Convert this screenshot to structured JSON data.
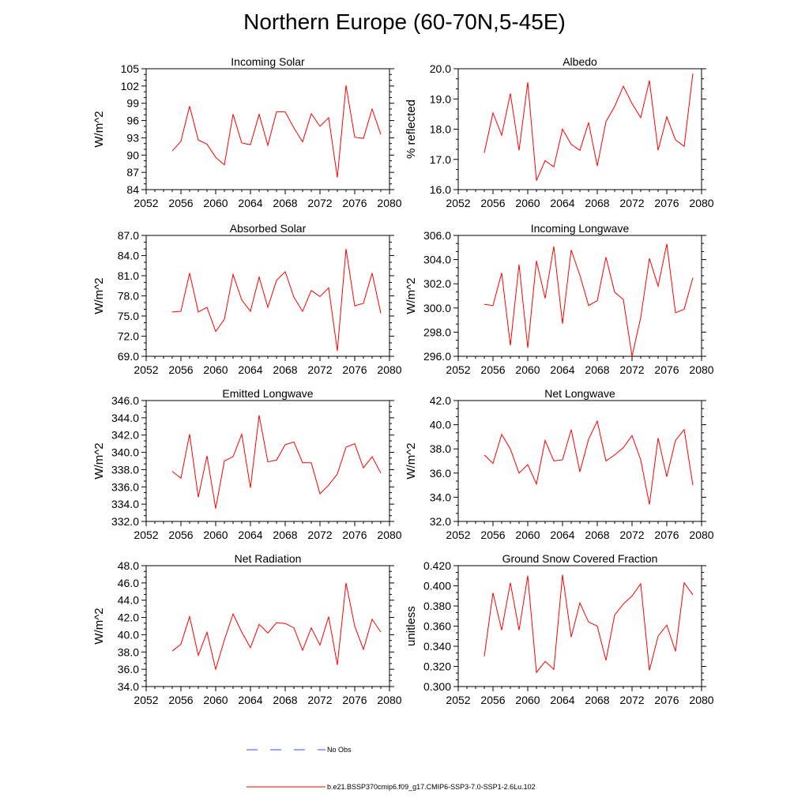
{
  "title": "Northern Europe (60-70N,5-45E)",
  "colors": {
    "model_line": "#ff0000",
    "obs_line": "#3b4fd8",
    "axis": "#000000"
  },
  "legend": {
    "obs_label": "No Obs",
    "model_label": "b.e21.BSSP370cmip6.f09_g17.CMIP6-SSP3-7.0-SSP1-2.6Lu.102"
  },
  "chart_data": [
    {
      "type": "line",
      "title": "Incoming Solar",
      "ylabel": "W/m^2",
      "xlim": [
        2052,
        2080
      ],
      "ylim": [
        84,
        105
      ],
      "xticks": [
        "2052",
        "2056",
        "2060",
        "2064",
        "2068",
        "2072",
        "2076",
        "2080"
      ],
      "yticks": [
        "84",
        "87",
        "90",
        "93",
        "96",
        "99",
        "102",
        "105"
      ],
      "x": [
        2055,
        2056,
        2057,
        2058,
        2059,
        2060,
        2061,
        2062,
        2063,
        2064,
        2065,
        2066,
        2067,
        2068,
        2069,
        2070,
        2071,
        2072,
        2073,
        2074,
        2075,
        2076,
        2077,
        2078,
        2079
      ],
      "series": [
        {
          "values": [
            90.7,
            92.4,
            98.5,
            92.6,
            91.9,
            89.6,
            88.3,
            97.1,
            92.1,
            91.8,
            97.1,
            91.7,
            97.5,
            97.5,
            94.7,
            92.3,
            97.2,
            95.0,
            96.5,
            86.1,
            102.1,
            93.1,
            92.9,
            98.0,
            93.6
          ]
        }
      ]
    },
    {
      "type": "line",
      "title": "Albedo",
      "ylabel": "% reflected",
      "xlim": [
        2052,
        2080
      ],
      "ylim": [
        16.0,
        20.0
      ],
      "xticks": [
        "2052",
        "2056",
        "2060",
        "2064",
        "2068",
        "2072",
        "2076",
        "2080"
      ],
      "yticks": [
        "16.0",
        "17.0",
        "18.0",
        "19.0",
        "20.0"
      ],
      "x": [
        2055,
        2056,
        2057,
        2058,
        2059,
        2060,
        2061,
        2062,
        2063,
        2064,
        2065,
        2066,
        2067,
        2068,
        2069,
        2070,
        2071,
        2072,
        2073,
        2074,
        2075,
        2076,
        2077,
        2078,
        2079
      ],
      "series": [
        {
          "values": [
            17.22,
            18.54,
            17.8,
            19.18,
            17.3,
            19.55,
            16.3,
            16.96,
            16.75,
            18.0,
            17.5,
            17.3,
            18.22,
            16.78,
            18.25,
            18.75,
            19.42,
            18.85,
            18.38,
            19.61,
            17.3,
            18.41,
            17.65,
            17.43,
            19.84
          ]
        }
      ]
    },
    {
      "type": "line",
      "title": "Absorbed Solar",
      "ylabel": "W/m^2",
      "xlim": [
        2052,
        2080
      ],
      "ylim": [
        69.0,
        87.0
      ],
      "xticks": [
        "2052",
        "2056",
        "2060",
        "2064",
        "2068",
        "2072",
        "2076",
        "2080"
      ],
      "yticks": [
        "69.0",
        "72.0",
        "75.0",
        "78.0",
        "81.0",
        "84.0",
        "87.0"
      ],
      "x": [
        2055,
        2056,
        2057,
        2058,
        2059,
        2060,
        2061,
        2062,
        2063,
        2064,
        2065,
        2066,
        2067,
        2068,
        2069,
        2070,
        2071,
        2072,
        2073,
        2074,
        2075,
        2076,
        2077,
        2078,
        2079
      ],
      "series": [
        {
          "values": [
            75.6,
            75.7,
            81.4,
            75.6,
            76.3,
            72.7,
            74.5,
            81.2,
            77.4,
            75.7,
            80.8,
            76.3,
            80.3,
            81.6,
            77.8,
            75.7,
            78.8,
            77.9,
            79.2,
            69.8,
            85.0,
            76.5,
            76.9,
            81.4,
            75.4
          ]
        }
      ]
    },
    {
      "type": "line",
      "title": "Incoming Longwave",
      "ylabel": "W/m^2",
      "xlim": [
        2052,
        2080
      ],
      "ylim": [
        296.0,
        306.0
      ],
      "xticks": [
        "2052",
        "2056",
        "2060",
        "2064",
        "2068",
        "2072",
        "2076",
        "2080"
      ],
      "yticks": [
        "296.0",
        "298.0",
        "300.0",
        "302.0",
        "304.0",
        "306.0"
      ],
      "x": [
        2055,
        2056,
        2057,
        2058,
        2059,
        2060,
        2061,
        2062,
        2063,
        2064,
        2065,
        2066,
        2067,
        2068,
        2069,
        2070,
        2071,
        2072,
        2073,
        2074,
        2075,
        2076,
        2077,
        2078,
        2079
      ],
      "series": [
        {
          "values": [
            300.3,
            300.2,
            302.9,
            296.9,
            303.6,
            296.7,
            303.9,
            300.8,
            305.1,
            298.7,
            304.8,
            302.7,
            300.2,
            300.6,
            304.2,
            301.3,
            300.7,
            296.0,
            299.2,
            304.1,
            301.8,
            305.3,
            299.6,
            299.9,
            302.5
          ]
        }
      ]
    },
    {
      "type": "line",
      "title": "Emitted Longwave",
      "ylabel": "W/m^2",
      "xlim": [
        2052,
        2080
      ],
      "ylim": [
        332.0,
        346.0
      ],
      "xticks": [
        "2052",
        "2056",
        "2060",
        "2064",
        "2068",
        "2072",
        "2076",
        "2080"
      ],
      "yticks": [
        "332.0",
        "334.0",
        "336.0",
        "338.0",
        "340.0",
        "342.0",
        "344.0",
        "346.0"
      ],
      "x": [
        2055,
        2056,
        2057,
        2058,
        2059,
        2060,
        2061,
        2062,
        2063,
        2064,
        2065,
        2066,
        2067,
        2068,
        2069,
        2070,
        2071,
        2072,
        2073,
        2074,
        2075,
        2076,
        2077,
        2078,
        2079
      ],
      "series": [
        {
          "values": [
            337.8,
            337.0,
            342.1,
            334.8,
            339.6,
            333.5,
            339.0,
            339.5,
            342.1,
            335.9,
            344.3,
            338.9,
            339.1,
            340.9,
            341.2,
            338.8,
            338.8,
            335.2,
            336.2,
            337.5,
            340.6,
            341.0,
            338.2,
            339.5,
            337.6
          ]
        }
      ]
    },
    {
      "type": "line",
      "title": "Net Longwave",
      "ylabel": "W/m^2",
      "xlim": [
        2052,
        2080
      ],
      "ylim": [
        32.0,
        42.0
      ],
      "xticks": [
        "2052",
        "2056",
        "2060",
        "2064",
        "2068",
        "2072",
        "2076",
        "2080"
      ],
      "yticks": [
        "32.0",
        "34.0",
        "36.0",
        "38.0",
        "40.0",
        "42.0"
      ],
      "x": [
        2055,
        2056,
        2057,
        2058,
        2059,
        2060,
        2061,
        2062,
        2063,
        2064,
        2065,
        2066,
        2067,
        2068,
        2069,
        2070,
        2071,
        2072,
        2073,
        2074,
        2075,
        2076,
        2077,
        2078,
        2079
      ],
      "series": [
        {
          "values": [
            37.5,
            36.8,
            39.2,
            38.0,
            36.0,
            36.7,
            35.1,
            38.7,
            37.0,
            37.1,
            39.6,
            36.1,
            38.8,
            40.3,
            37.0,
            37.5,
            38.1,
            39.1,
            37.1,
            33.4,
            38.9,
            35.7,
            38.7,
            39.6,
            35.0
          ]
        }
      ]
    },
    {
      "type": "line",
      "title": "Net Radiation",
      "ylabel": "W/m^2",
      "xlim": [
        2052,
        2080
      ],
      "ylim": [
        34.0,
        48.0
      ],
      "xticks": [
        "2052",
        "2056",
        "2060",
        "2064",
        "2068",
        "2072",
        "2076",
        "2080"
      ],
      "yticks": [
        "34.0",
        "36.0",
        "38.0",
        "40.0",
        "42.0",
        "44.0",
        "46.0",
        "48.0"
      ],
      "x": [
        2055,
        2056,
        2057,
        2058,
        2059,
        2060,
        2061,
        2062,
        2063,
        2064,
        2065,
        2066,
        2067,
        2068,
        2069,
        2070,
        2071,
        2072,
        2073,
        2074,
        2075,
        2076,
        2077,
        2078,
        2079
      ],
      "series": [
        {
          "values": [
            38.1,
            38.9,
            42.1,
            37.6,
            40.3,
            36.0,
            39.4,
            42.4,
            40.3,
            38.5,
            41.2,
            40.2,
            41.4,
            41.3,
            40.8,
            38.2,
            40.8,
            38.8,
            42.1,
            36.5,
            46.0,
            41.0,
            38.3,
            41.8,
            40.3
          ]
        }
      ]
    },
    {
      "type": "line",
      "title": "Ground Snow Covered Fraction",
      "ylabel": "unitless",
      "xlim": [
        2052,
        2080
      ],
      "ylim": [
        0.3,
        0.42
      ],
      "xticks": [
        "2052",
        "2056",
        "2060",
        "2064",
        "2068",
        "2072",
        "2076",
        "2080"
      ],
      "yticks": [
        "0.300",
        "0.320",
        "0.340",
        "0.360",
        "0.380",
        "0.400",
        "0.420"
      ],
      "x": [
        2055,
        2056,
        2057,
        2058,
        2059,
        2060,
        2061,
        2062,
        2063,
        2064,
        2065,
        2066,
        2067,
        2068,
        2069,
        2070,
        2071,
        2072,
        2073,
        2074,
        2075,
        2076,
        2077,
        2078,
        2079
      ],
      "series": [
        {
          "values": [
            0.33,
            0.393,
            0.356,
            0.403,
            0.356,
            0.41,
            0.314,
            0.325,
            0.317,
            0.411,
            0.349,
            0.383,
            0.364,
            0.36,
            0.326,
            0.371,
            0.382,
            0.39,
            0.402,
            0.316,
            0.35,
            0.361,
            0.335,
            0.403,
            0.391
          ]
        }
      ]
    }
  ]
}
